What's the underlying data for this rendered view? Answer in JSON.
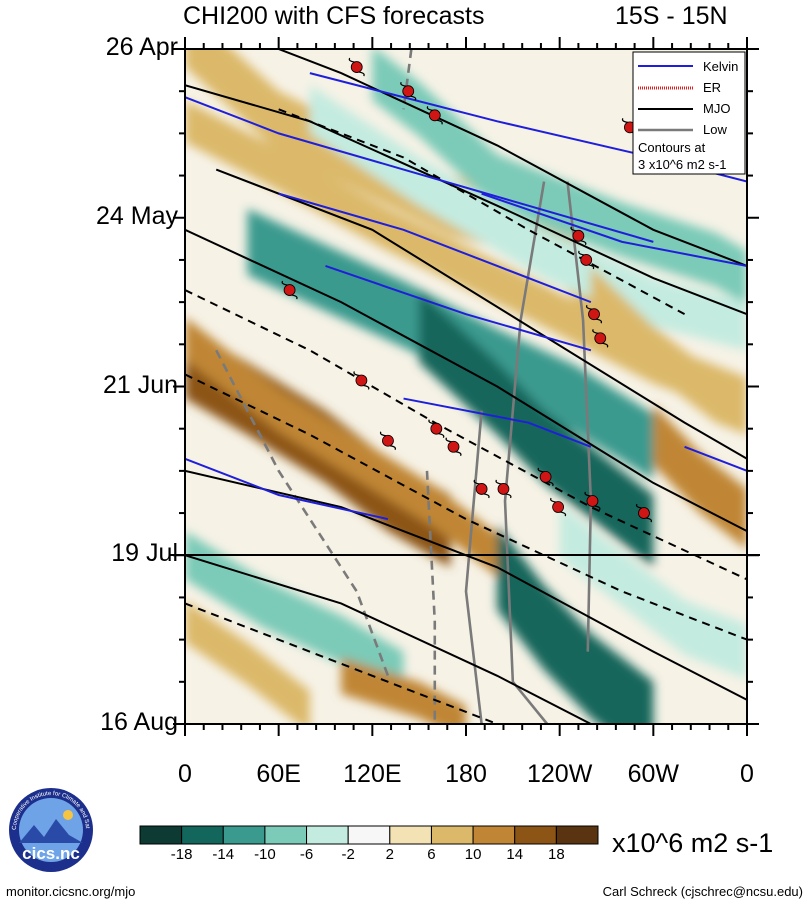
{
  "title": "CHI200 with CFS forecasts",
  "lat_range": "15S - 15N",
  "units": "x10^6 m2 s-1",
  "footer": {
    "left": "monitor.cicsnc.org/mjo",
    "right": "Carl Schreck (cjschrec@ncsu.edu)"
  },
  "logo": {
    "text": "cics.nc",
    "ring_text": "Cooperative Institute for Climate and Satellites"
  },
  "legend": {
    "items": [
      {
        "label": "Kelvin",
        "color": "#1f1fdb",
        "style": "solid"
      },
      {
        "label": "ER",
        "color": "#e02020",
        "style": "dotted"
      },
      {
        "label": "MJO",
        "color": "#000000",
        "style": "solid"
      },
      {
        "label": "Low",
        "color": "#7a7a7a",
        "style": "solid"
      }
    ],
    "note_line1": "Contours at",
    "note_line2": "3 x10^6 m2 s-1"
  },
  "chart_data": {
    "type": "heatmap",
    "title": "CHI200 with CFS forecasts",
    "subtitle": "15S - 15N",
    "x_ticks": [
      "0",
      "60E",
      "120E",
      "180",
      "120W",
      "60W",
      "0"
    ],
    "y_ticks": [
      "26 Apr",
      "24 May",
      "21 Jun",
      "19 Jul",
      "16 Aug"
    ],
    "x_range_deg_east": [
      0,
      360
    ],
    "forecast_start_date": "19 Jul",
    "colorbar": {
      "ticks": [
        "-18",
        "-14",
        "-10",
        "-6",
        "-2",
        "2",
        "6",
        "10",
        "14",
        "18"
      ],
      "colors": [
        "#0d3b34",
        "#13665c",
        "#3a9a8e",
        "#7ccab8",
        "#c4ebe0",
        "#f7f7f7",
        "#f3e3b4",
        "#dcb96a",
        "#c08636",
        "#8c5516",
        "#5a3310"
      ]
    },
    "tropical_cyclones": [
      {
        "lon": 110,
        "date": "29 Apr"
      },
      {
        "lon": 143,
        "date": "3 May"
      },
      {
        "lon": 160,
        "date": "7 May"
      },
      {
        "lon": 285,
        "date": "9 May"
      },
      {
        "lon": 252,
        "date": "27 May"
      },
      {
        "lon": 257,
        "date": "31 May"
      },
      {
        "lon": 67,
        "date": "5 Jun"
      },
      {
        "lon": 262,
        "date": "9 Jun"
      },
      {
        "lon": 266,
        "date": "13 Jun"
      },
      {
        "lon": 113,
        "date": "20 Jun"
      },
      {
        "lon": 161,
        "date": "28 Jun"
      },
      {
        "lon": 130,
        "date": "30 Jun"
      },
      {
        "lon": 172,
        "date": "1 Jul"
      },
      {
        "lon": 231,
        "date": "6 Jul"
      },
      {
        "lon": 190,
        "date": "8 Jul"
      },
      {
        "lon": 204,
        "date": "8 Jul"
      },
      {
        "lon": 261,
        "date": "10 Jul"
      },
      {
        "lon": 239,
        "date": "11 Jul"
      },
      {
        "lon": 294,
        "date": "12 Jul"
      }
    ]
  }
}
